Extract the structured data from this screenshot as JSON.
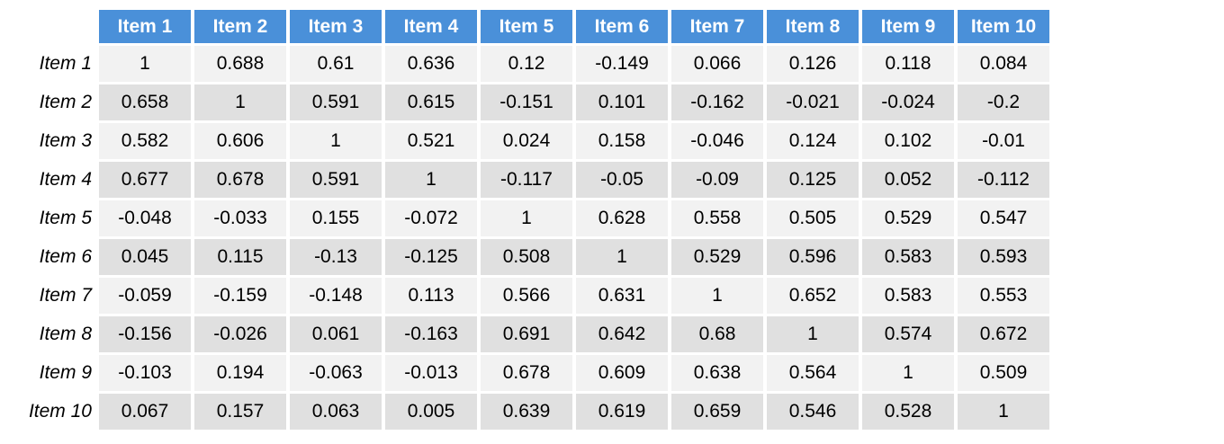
{
  "chart_data": {
    "type": "table",
    "columns": [
      "Item 1",
      "Item 2",
      "Item 3",
      "Item 4",
      "Item 5",
      "Item 6",
      "Item 7",
      "Item 8",
      "Item 9",
      "Item 10"
    ],
    "rows": [
      {
        "label": "Item 1",
        "values": [
          "1",
          "0.688",
          "0.61",
          "0.636",
          "0.12",
          "-0.149",
          "0.066",
          "0.126",
          "0.118",
          "0.084"
        ]
      },
      {
        "label": "Item 2",
        "values": [
          "0.658",
          "1",
          "0.591",
          "0.615",
          "-0.151",
          "0.101",
          "-0.162",
          "-0.021",
          "-0.024",
          "-0.2"
        ]
      },
      {
        "label": "Item 3",
        "values": [
          "0.582",
          "0.606",
          "1",
          "0.521",
          "0.024",
          "0.158",
          "-0.046",
          "0.124",
          "0.102",
          "-0.01"
        ]
      },
      {
        "label": "Item 4",
        "values": [
          "0.677",
          "0.678",
          "0.591",
          "1",
          "-0.117",
          "-0.05",
          "-0.09",
          "0.125",
          "0.052",
          "-0.112"
        ]
      },
      {
        "label": "Item 5",
        "values": [
          "-0.048",
          "-0.033",
          "0.155",
          "-0.072",
          "1",
          "0.628",
          "0.558",
          "0.505",
          "0.529",
          "0.547"
        ]
      },
      {
        "label": "Item 6",
        "values": [
          "0.045",
          "0.115",
          "-0.13",
          "-0.125",
          "0.508",
          "1",
          "0.529",
          "0.596",
          "0.583",
          "0.593"
        ]
      },
      {
        "label": "Item 7",
        "values": [
          "-0.059",
          "-0.159",
          "-0.148",
          "0.113",
          "0.566",
          "0.631",
          "1",
          "0.652",
          "0.583",
          "0.553"
        ]
      },
      {
        "label": "Item 8",
        "values": [
          "-0.156",
          "-0.026",
          "0.061",
          "-0.163",
          "0.691",
          "0.642",
          "0.68",
          "1",
          "0.574",
          "0.672"
        ]
      },
      {
        "label": "Item 9",
        "values": [
          "-0.103",
          "0.194",
          "-0.063",
          "-0.013",
          "0.678",
          "0.609",
          "0.638",
          "0.564",
          "1",
          "0.509"
        ]
      },
      {
        "label": "Item 10",
        "values": [
          "0.067",
          "0.157",
          "0.063",
          "0.005",
          "0.639",
          "0.619",
          "0.659",
          "0.546",
          "0.528",
          "1"
        ]
      }
    ],
    "header_color": "#4a90d9",
    "row_colors": [
      "#f2f2f2",
      "#e0e0e0"
    ]
  }
}
